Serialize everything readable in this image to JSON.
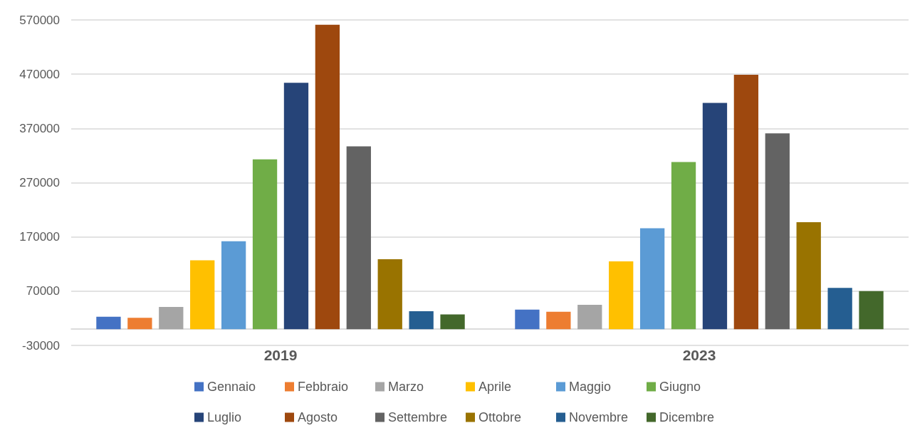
{
  "chart_data": {
    "type": "bar",
    "categories": [
      "2019",
      "2023"
    ],
    "series": [
      {
        "name": "Gennaio",
        "color": "#4472c4",
        "values": [
          23000,
          36000
        ]
      },
      {
        "name": "Febbraio",
        "color": "#ed7d31",
        "values": [
          21000,
          32000
        ]
      },
      {
        "name": "Marzo",
        "color": "#a5a5a5",
        "values": [
          41000,
          45000
        ]
      },
      {
        "name": "Aprile",
        "color": "#ffc000",
        "values": [
          127000,
          125000
        ]
      },
      {
        "name": "Maggio",
        "color": "#5b9bd5",
        "values": [
          162000,
          186000
        ]
      },
      {
        "name": "Giugno",
        "color": "#70ad47",
        "values": [
          313000,
          308000
        ]
      },
      {
        "name": "Luglio",
        "color": "#264478",
        "values": [
          454000,
          417000
        ]
      },
      {
        "name": "Agosto",
        "color": "#9e480e",
        "values": [
          561000,
          469000
        ]
      },
      {
        "name": "Settembre",
        "color": "#636363",
        "values": [
          337000,
          361000
        ]
      },
      {
        "name": "Ottobre",
        "color": "#997300",
        "values": [
          129000,
          197000
        ]
      },
      {
        "name": "Novembre",
        "color": "#255e91",
        "values": [
          33000,
          76000
        ]
      },
      {
        "name": "Dicembre",
        "color": "#43682b",
        "values": [
          27000,
          70000
        ]
      }
    ],
    "ylim": [
      -30000,
      570000
    ],
    "yticks": [
      -30000,
      70000,
      170000,
      270000,
      370000,
      470000,
      570000
    ],
    "grid": "y",
    "legend": "bottom"
  }
}
